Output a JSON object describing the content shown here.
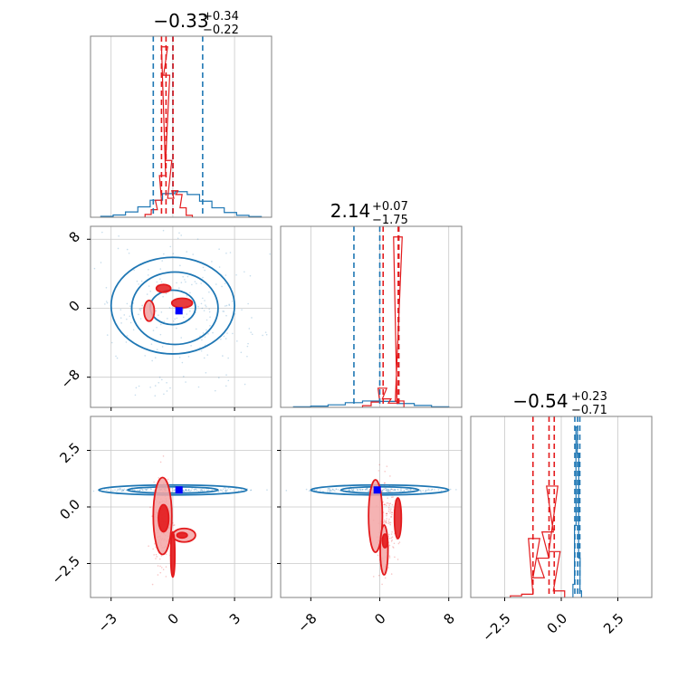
{
  "chart_data": {
    "type": "corner",
    "grid": true,
    "colors": {
      "blue": "#1f77b4",
      "red": "#e31a1c",
      "marker": "#0000ff",
      "frame": "#808080",
      "grid": "#c8c8c8"
    },
    "titles": [
      {
        "main": "−0.33",
        "sup": "+0.34",
        "sub": "−0.22"
      },
      {
        "main": "2.14",
        "sup": "+0.07",
        "sub": "−1.75"
      },
      {
        "main": "−0.54",
        "sup": "+0.23",
        "sub": "−0.71"
      }
    ],
    "params": [
      {
        "range": [
          -4.0,
          4.8
        ],
        "ticks": [
          -3,
          0,
          3
        ],
        "tick_labels": [
          "−3",
          "0",
          "3"
        ]
      },
      {
        "range": [
          -11.5,
          9.5
        ],
        "ticks": [
          -8,
          0,
          8
        ],
        "tick_labels": [
          "−8",
          "0",
          "8"
        ]
      },
      {
        "range": [
          -4.0,
          4.0
        ],
        "ticks": [
          -2.5,
          0.0,
          2.5
        ],
        "tick_labels": [
          "−2.5",
          "0.0",
          "2.5"
        ]
      }
    ],
    "quantile_lines": {
      "blue": [
        [
          -0.95,
          0.0,
          1.45
        ],
        [
          -3.0,
          0.0,
          2.2
        ],
        [
          0.6,
          0.72,
          0.82
        ]
      ],
      "red": [
        [
          -0.55,
          -0.33,
          0.01
        ],
        [
          0.39,
          2.14,
          2.21
        ],
        [
          -1.25,
          -0.54,
          -0.31
        ]
      ]
    },
    "truth_markers": [
      {
        "panel": "p1-p2",
        "x": 0.3,
        "y": -0.3
      },
      {
        "panel": "p1-p3",
        "x": 0.3,
        "y": 0.75
      },
      {
        "panel": "p2-p3",
        "x": -0.3,
        "y": 0.75
      }
    ],
    "series": [
      {
        "name": "",
        "color": "#1f77b4",
        "hist_p1": {
          "x": [
            -3.2,
            -2.6,
            -2.0,
            -1.4,
            -0.8,
            -0.2,
            0.4,
            1.0,
            1.6,
            2.2,
            2.8,
            3.4,
            4.0
          ],
          "y": [
            0.5,
            1.2,
            2.8,
            5.5,
            9.0,
            12.5,
            13.5,
            12.0,
            8.5,
            5.0,
            2.5,
            1.0,
            0.4
          ]
        },
        "hist_p2": {
          "x": [
            -9,
            -7,
            -5,
            -3,
            -1,
            1,
            3,
            5,
            7
          ],
          "y": [
            0.3,
            0.6,
            1.2,
            2.2,
            3.0,
            2.8,
            1.8,
            0.9,
            0.3
          ]
        },
        "hist_p3": {
          "x": [
            0.55,
            0.62,
            0.68,
            0.74,
            0.8,
            0.86
          ],
          "y": [
            4,
            22,
            52,
            44,
            12,
            2
          ]
        }
      },
      {
        "name": "",
        "color": "#e31a1c",
        "hist_p1": {
          "x": [
            -1.2,
            -0.9,
            -0.7,
            -0.5,
            -0.4,
            -0.3,
            -0.2,
            -0.1,
            0.1,
            0.3,
            0.5,
            0.8
          ],
          "y": [
            1.5,
            4,
            9,
            22,
            90,
            75,
            30,
            10,
            14,
            12,
            5,
            1
          ]
        },
        "hist_p2": {
          "x": [
            -1.5,
            -0.5,
            0.3,
            0.8,
            1.5,
            2.1,
            2.3
          ],
          "y": [
            0.8,
            2.5,
            9,
            4,
            2,
            80,
            3
          ]
        },
        "hist_p3": {
          "x": [
            -2.0,
            -1.5,
            -1.2,
            -1.0,
            -0.8,
            -0.6,
            -0.4,
            -0.3,
            -0.1
          ],
          "y": [
            0.5,
            1,
            18,
            6,
            12,
            20,
            34,
            14,
            2
          ]
        }
      }
    ]
  }
}
